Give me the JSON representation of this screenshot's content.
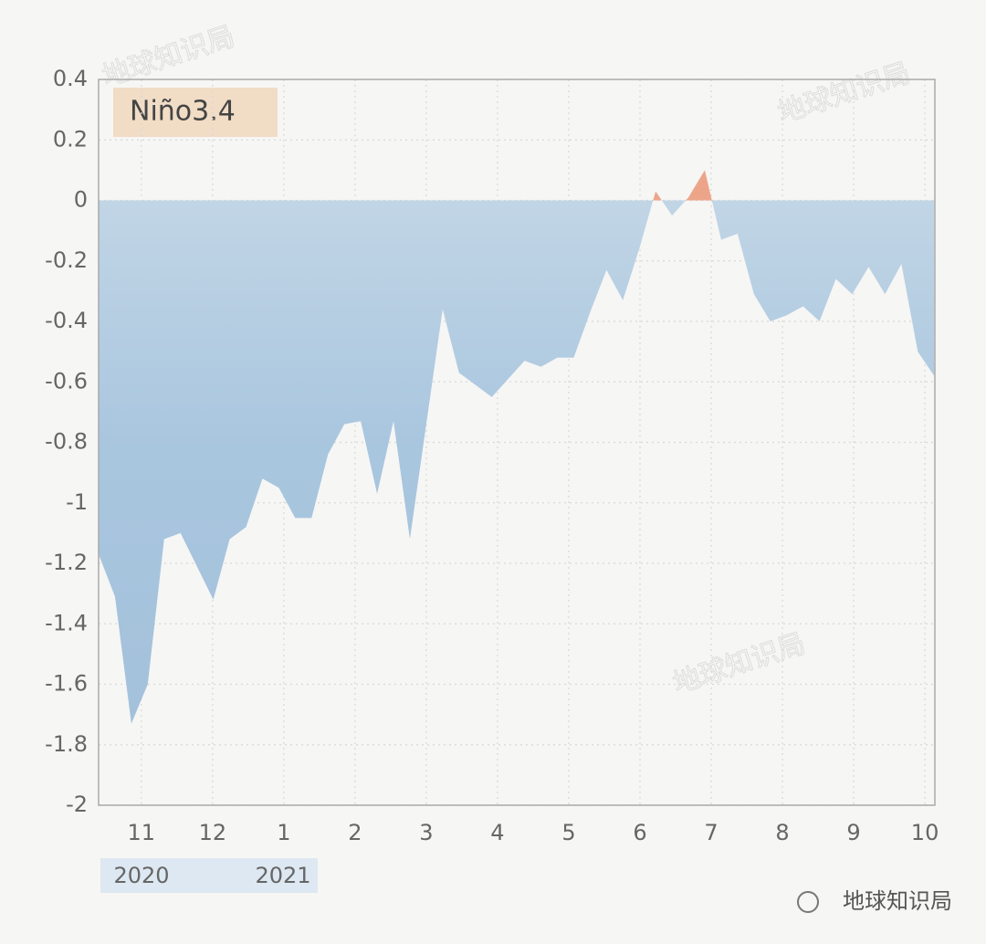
{
  "watermark": "地球知识局",
  "source": "地球知识局",
  "chart_data": {
    "type": "area",
    "legend": "Niño3.4",
    "x": [
      10.4,
      10.63,
      10.86,
      11.09,
      11.32,
      11.55,
      11.78,
      12.01,
      12.24,
      12.47,
      12.7,
      12.93,
      13.16,
      13.39,
      13.62,
      13.85,
      14.08,
      14.31,
      14.54,
      14.77,
      15.0,
      15.23,
      15.46,
      15.69,
      15.92,
      16.15,
      16.38,
      16.61,
      16.84,
      17.07,
      17.3,
      17.53,
      17.76,
      17.99,
      18.22,
      18.45,
      18.68,
      18.91,
      19.14,
      19.37,
      19.6,
      19.83,
      20.06,
      20.29,
      20.52,
      20.75,
      20.98,
      21.21,
      21.44,
      21.67,
      21.9,
      22.13
    ],
    "values": [
      -1.17,
      -1.31,
      -1.73,
      -1.6,
      -1.12,
      -1.1,
      -1.21,
      -1.32,
      -1.12,
      -1.08,
      -0.92,
      -0.95,
      -1.05,
      -1.05,
      -0.84,
      -0.74,
      -0.73,
      -0.97,
      -0.73,
      -1.12,
      -0.74,
      -0.36,
      -0.57,
      -0.61,
      -0.65,
      -0.59,
      -0.53,
      -0.55,
      -0.52,
      -0.52,
      -0.37,
      -0.23,
      -0.33,
      -0.16,
      0.03,
      -0.05,
      0.01,
      0.1,
      -0.13,
      -0.11,
      -0.31,
      -0.4,
      -0.38,
      -0.35,
      -0.4,
      -0.26,
      -0.31,
      -0.22,
      -0.31,
      -0.21,
      -0.5,
      -0.58
    ],
    "negative_color": "#a9c6df",
    "positive_color": "#eda58a",
    "xlim": [
      10.4,
      22.14
    ],
    "xticks": [
      11,
      12,
      {
        "value": 13,
        "label": "1"
      },
      {
        "value": 14,
        "label": "2"
      },
      {
        "value": 15,
        "label": "3"
      },
      {
        "value": 16,
        "label": "4"
      },
      {
        "value": 17,
        "label": "5"
      },
      {
        "value": 18,
        "label": "6"
      },
      {
        "value": 19,
        "label": "7"
      },
      {
        "value": 20,
        "label": "8"
      },
      {
        "value": 21,
        "label": "9"
      },
      {
        "value": 22,
        "label": "10"
      }
    ],
    "years": [
      "2020",
      "2021"
    ],
    "ylim": [
      -2,
      0.4
    ],
    "yticks": [
      0.4,
      0.2,
      0,
      -0.2,
      -0.4,
      -0.6,
      -0.8,
      -1,
      -1.2,
      -1.4,
      -1.6,
      -1.8,
      -2
    ],
    "grid": true
  }
}
